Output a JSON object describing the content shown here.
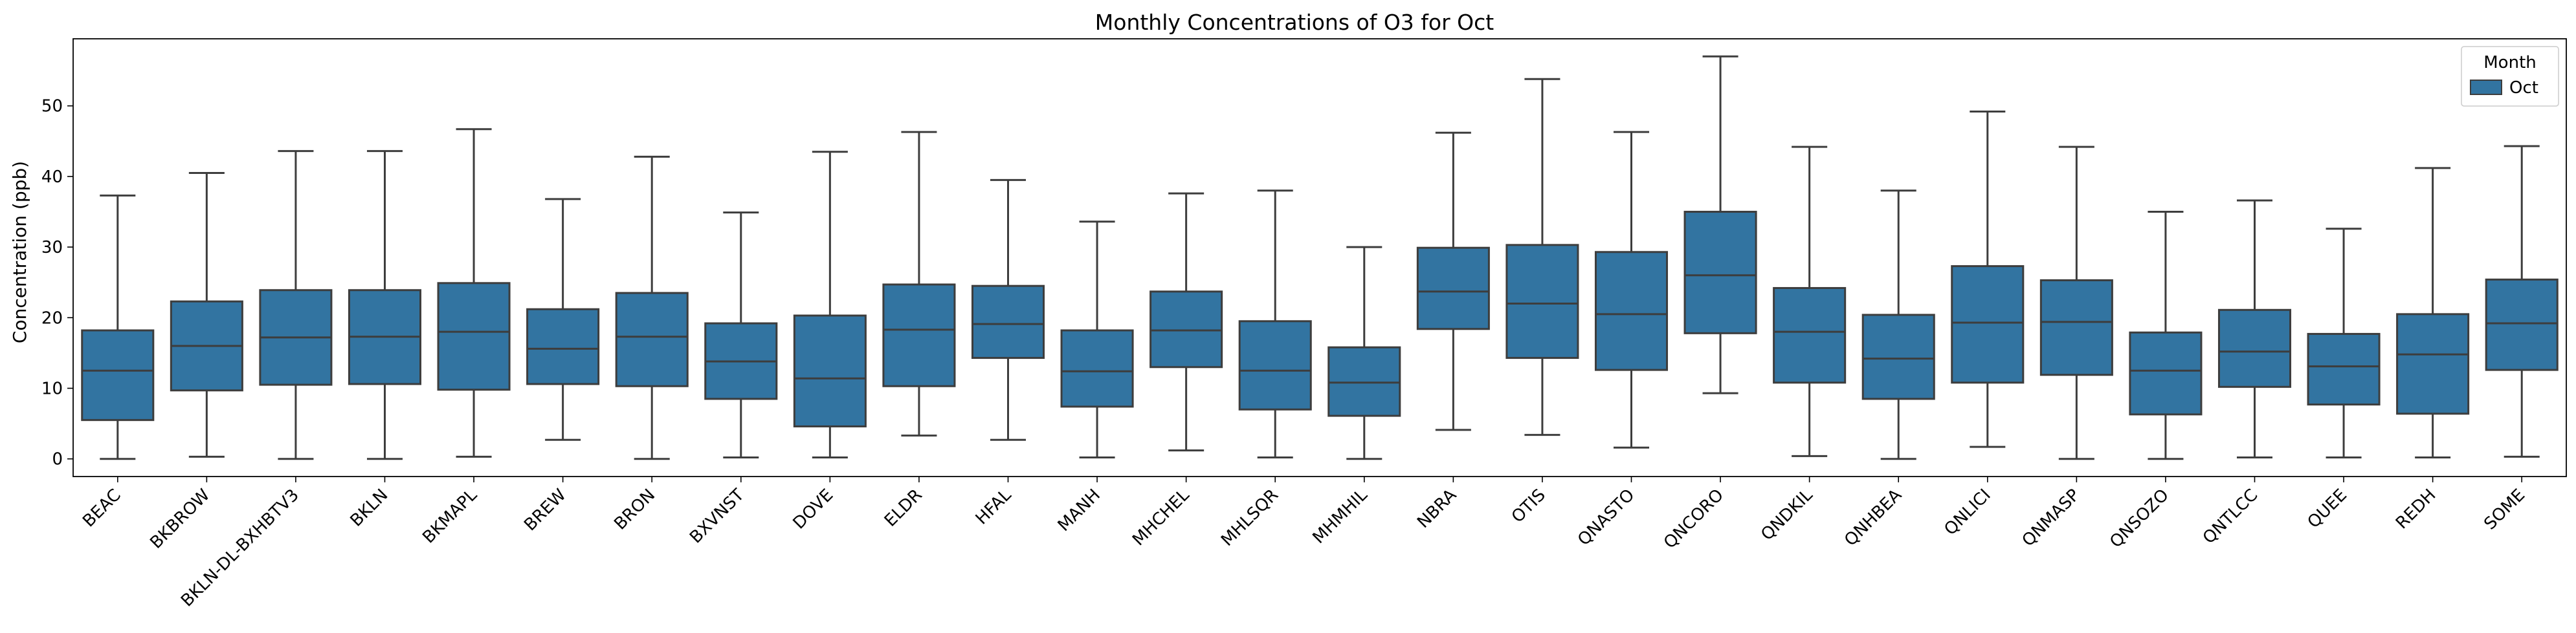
{
  "chart_data": {
    "type": "box",
    "title": "Monthly Concentrations of O3 for Oct",
    "xlabel": "",
    "ylabel": "Concentration (ppb)",
    "ylim": [
      -2.5,
      59.5
    ],
    "yticks": [
      0,
      10,
      20,
      30,
      40,
      50
    ],
    "legend": {
      "title": "Month",
      "placement": "top-right",
      "entries": [
        "Oct"
      ]
    },
    "colors": {
      "box_fill": "#3274a1",
      "lines": "#3d3d3d"
    },
    "series": [
      {
        "name": "Oct",
        "boxes": [
          {
            "label": "BEAC",
            "whislo": 0.0,
            "q1": 5.5,
            "med": 12.5,
            "q3": 18.2,
            "whishi": 37.3
          },
          {
            "label": "BKBROW",
            "whislo": 0.3,
            "q1": 9.7,
            "med": 16.0,
            "q3": 22.3,
            "whishi": 40.5
          },
          {
            "label": "BKLN-DL-BXHBTV3",
            "whislo": 0.0,
            "q1": 10.5,
            "med": 17.2,
            "q3": 23.9,
            "whishi": 43.6
          },
          {
            "label": "BKLN",
            "whislo": 0.0,
            "q1": 10.6,
            "med": 17.3,
            "q3": 23.9,
            "whishi": 43.6
          },
          {
            "label": "BKMAPL",
            "whislo": 0.3,
            "q1": 9.8,
            "med": 18.0,
            "q3": 24.9,
            "whishi": 46.7
          },
          {
            "label": "BREW",
            "whislo": 2.7,
            "q1": 10.6,
            "med": 15.6,
            "q3": 21.2,
            "whishi": 36.8
          },
          {
            "label": "BRON",
            "whislo": 0.0,
            "q1": 10.3,
            "med": 17.3,
            "q3": 23.5,
            "whishi": 42.8
          },
          {
            "label": "BXVNST",
            "whislo": 0.2,
            "q1": 8.5,
            "med": 13.8,
            "q3": 19.2,
            "whishi": 34.9
          },
          {
            "label": "DOVE",
            "whislo": 0.2,
            "q1": 4.6,
            "med": 11.4,
            "q3": 20.3,
            "whishi": 43.5
          },
          {
            "label": "ELDR",
            "whislo": 3.3,
            "q1": 10.3,
            "med": 18.3,
            "q3": 24.7,
            "whishi": 46.3
          },
          {
            "label": "HFAL",
            "whislo": 2.7,
            "q1": 14.3,
            "med": 19.1,
            "q3": 24.5,
            "whishi": 39.5
          },
          {
            "label": "MANH",
            "whislo": 0.2,
            "q1": 7.4,
            "med": 12.4,
            "q3": 18.2,
            "whishi": 33.6
          },
          {
            "label": "MHCHEL",
            "whislo": 1.2,
            "q1": 13.0,
            "med": 18.2,
            "q3": 23.7,
            "whishi": 37.6
          },
          {
            "label": "MHLSQR",
            "whislo": 0.2,
            "q1": 7.0,
            "med": 12.5,
            "q3": 19.5,
            "whishi": 38.0
          },
          {
            "label": "MHMHIL",
            "whislo": 0.0,
            "q1": 6.1,
            "med": 10.8,
            "q3": 15.8,
            "whishi": 30.0
          },
          {
            "label": "NBRA",
            "whislo": 4.1,
            "q1": 18.4,
            "med": 23.7,
            "q3": 29.9,
            "whishi": 46.2
          },
          {
            "label": "OTIS",
            "whislo": 3.4,
            "q1": 14.3,
            "med": 22.0,
            "q3": 30.3,
            "whishi": 53.8
          },
          {
            "label": "QNASTO",
            "whislo": 1.6,
            "q1": 12.6,
            "med": 20.5,
            "q3": 29.3,
            "whishi": 46.3
          },
          {
            "label": "QNCORO",
            "whislo": 9.3,
            "q1": 17.8,
            "med": 26.0,
            "q3": 35.0,
            "whishi": 57.0
          },
          {
            "label": "QNDKIL",
            "whislo": 0.4,
            "q1": 10.8,
            "med": 18.0,
            "q3": 24.2,
            "whishi": 44.2
          },
          {
            "label": "QNHBEA",
            "whislo": 0.0,
            "q1": 8.5,
            "med": 14.2,
            "q3": 20.4,
            "whishi": 38.0
          },
          {
            "label": "QNLICI",
            "whislo": 1.7,
            "q1": 10.8,
            "med": 19.3,
            "q3": 27.3,
            "whishi": 49.2
          },
          {
            "label": "QNMASP",
            "whislo": 0.0,
            "q1": 11.9,
            "med": 19.4,
            "q3": 25.3,
            "whishi": 44.2
          },
          {
            "label": "QNSOZO",
            "whislo": 0.0,
            "q1": 6.3,
            "med": 12.5,
            "q3": 17.9,
            "whishi": 35.0
          },
          {
            "label": "QNTLCC",
            "whislo": 0.2,
            "q1": 10.2,
            "med": 15.2,
            "q3": 21.1,
            "whishi": 36.6
          },
          {
            "label": "QUEE",
            "whislo": 0.2,
            "q1": 7.7,
            "med": 13.1,
            "q3": 17.7,
            "whishi": 32.6
          },
          {
            "label": "REDH",
            "whislo": 0.2,
            "q1": 6.4,
            "med": 14.8,
            "q3": 20.5,
            "whishi": 41.2
          },
          {
            "label": "SOME",
            "whislo": 0.3,
            "q1": 12.6,
            "med": 19.2,
            "q3": 25.4,
            "whishi": 44.3
          }
        ]
      }
    ]
  }
}
